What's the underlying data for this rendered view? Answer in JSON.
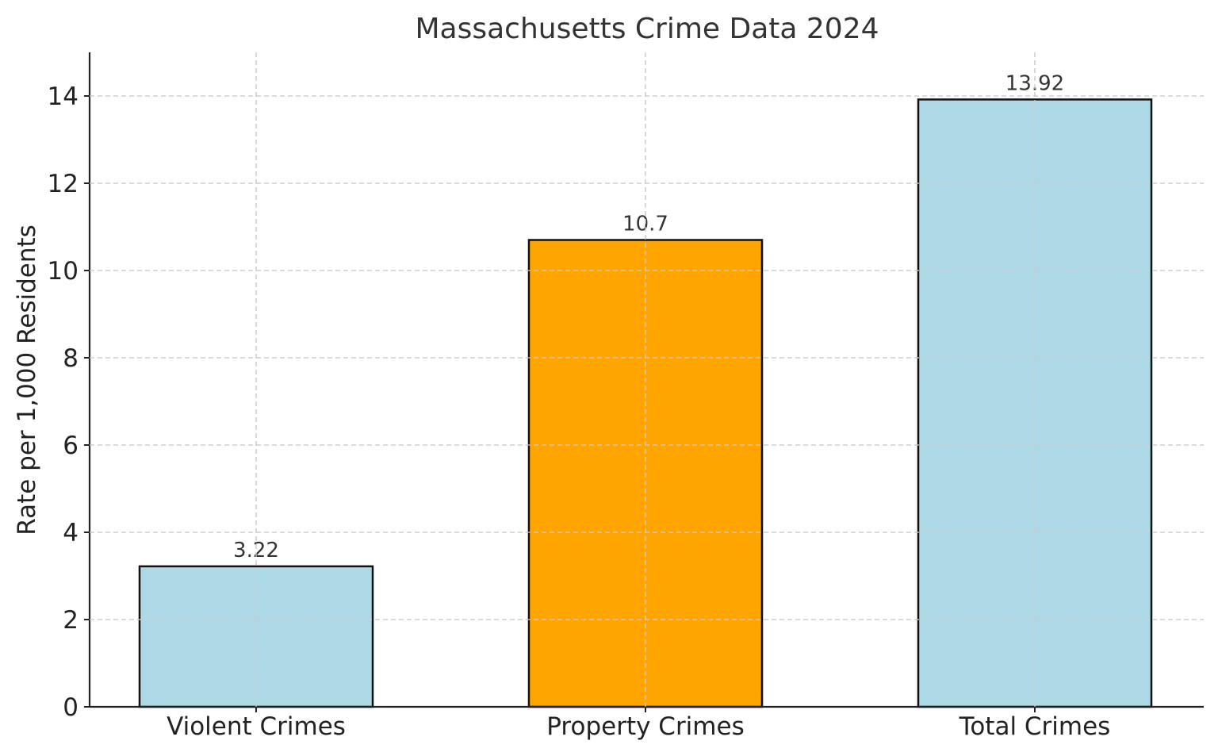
{
  "chart_data": {
    "type": "bar",
    "title": "Massachusetts Crime Data 2024",
    "xlabel": "",
    "ylabel": "Rate per 1,000 Residents",
    "categories": [
      "Violent Crimes",
      "Property Crimes",
      "Total Crimes"
    ],
    "values": [
      3.22,
      10.7,
      13.92
    ],
    "value_labels": [
      "3.22",
      "10.7",
      "13.92"
    ],
    "colors": [
      "#add8e6",
      "#ffa500",
      "#add8e6"
    ],
    "edge_color": "#111111",
    "ylim": [
      0,
      15
    ],
    "yticks": [
      0,
      2,
      4,
      6,
      8,
      10,
      12,
      14
    ],
    "ytick_labels": [
      "0",
      "2",
      "4",
      "6",
      "8",
      "10",
      "12",
      "14"
    ],
    "grid": true,
    "legend": false
  }
}
